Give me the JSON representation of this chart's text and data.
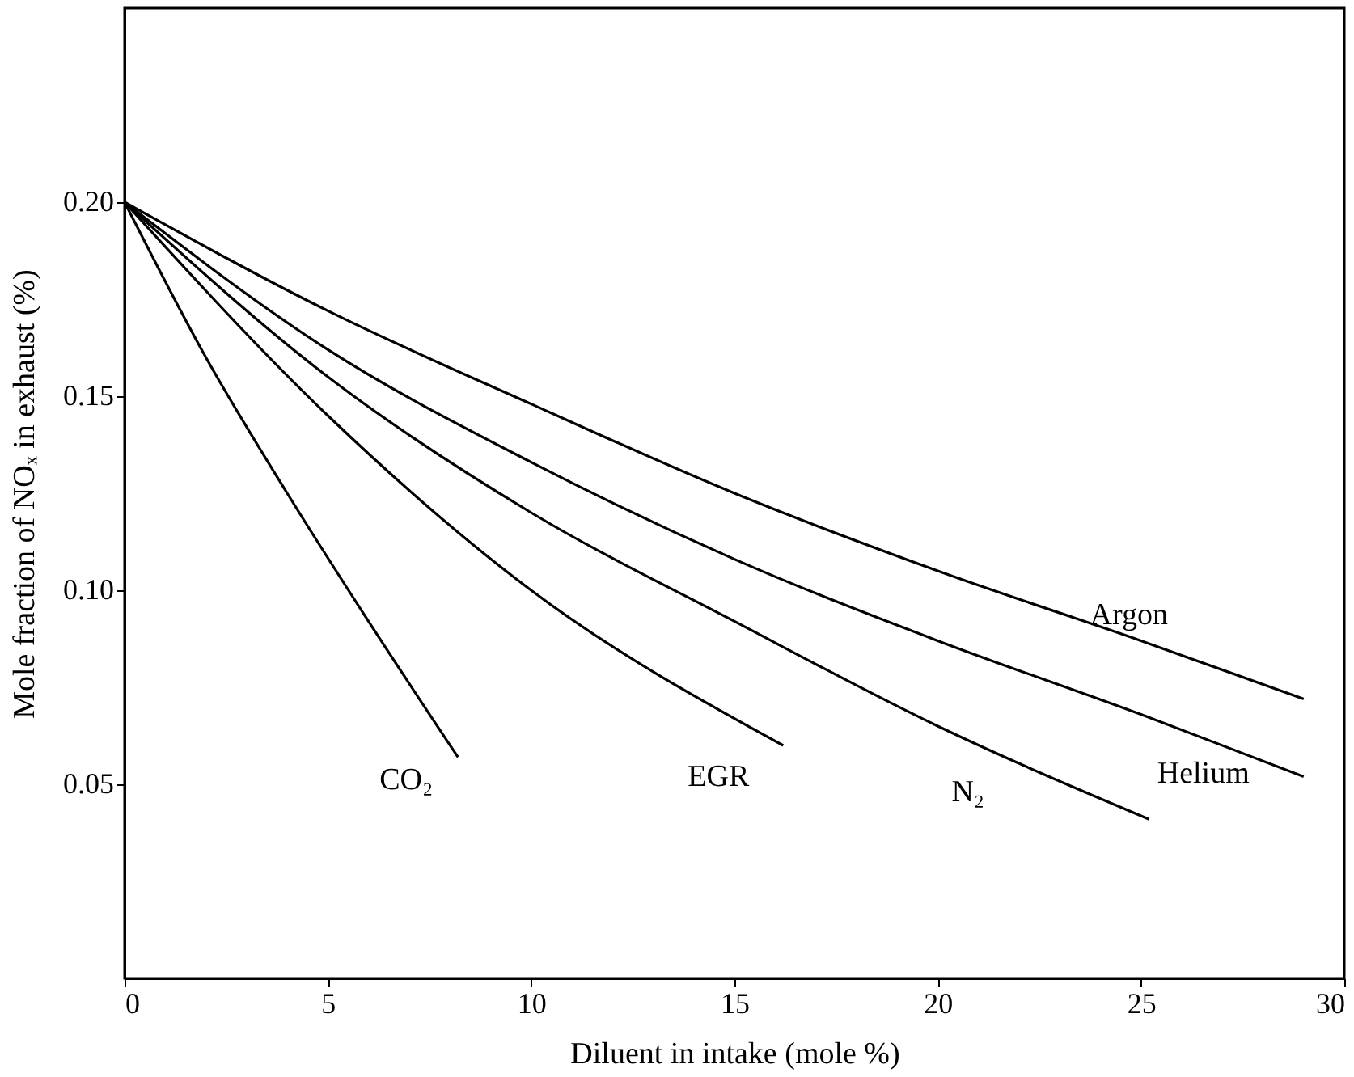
{
  "chart_data": {
    "type": "line",
    "xlabel": "Diluent in intake (mole %)",
    "ylabel": "Mole fraction of NOₓ in exhaust (%)",
    "xlim": [
      0,
      30
    ],
    "xticks": [
      0,
      5,
      10,
      15,
      20,
      25,
      30
    ],
    "ylim": [
      0,
      0.25
    ],
    "yticks": [
      0.05,
      {
        "value": 0.1,
        "label": "0.10"
      },
      0.15,
      {
        "value": 0.2,
        "label": "0.20"
      }
    ],
    "grid": false,
    "legend": false,
    "marker": "none",
    "line_style": "solid",
    "series": [
      {
        "name": "CO₂",
        "color": "#000000",
        "x": [
          0,
          2,
          4,
          6,
          8.2
        ],
        "values": [
          0.2,
          0.16,
          0.125,
          0.092,
          0.057
        ]
      },
      {
        "name": "EGR",
        "color": "#000000",
        "x": [
          0,
          5,
          10,
          16.2
        ],
        "values": [
          0.2,
          0.145,
          0.1,
          0.06
        ]
      },
      {
        "name": "N₂",
        "color": "#000000",
        "x": [
          0,
          5,
          10,
          15,
          20,
          25.2
        ],
        "values": [
          0.2,
          0.155,
          0.12,
          0.092,
          0.065,
          0.041
        ]
      },
      {
        "name": "Helium",
        "color": "#000000",
        "x": [
          0,
          5,
          10,
          15,
          20,
          25,
          29
        ],
        "values": [
          0.2,
          0.162,
          0.133,
          0.108,
          0.087,
          0.068,
          0.052
        ]
      },
      {
        "name": "Argon",
        "color": "#000000",
        "x": [
          0,
          5,
          10,
          15,
          20,
          25,
          29
        ],
        "values": [
          0.2,
          0.172,
          0.148,
          0.125,
          0.105,
          0.087,
          0.072
        ]
      }
    ]
  }
}
